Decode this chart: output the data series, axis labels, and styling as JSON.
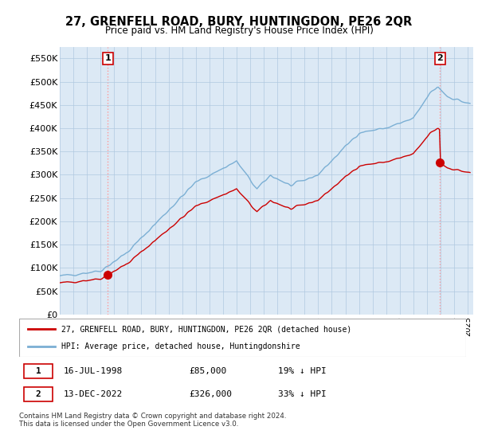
{
  "title": "27, GRENFELL ROAD, BURY, HUNTINGDON, PE26 2QR",
  "subtitle": "Price paid vs. HM Land Registry's House Price Index (HPI)",
  "ylim": [
    0,
    575000
  ],
  "yticks": [
    0,
    50000,
    100000,
    150000,
    200000,
    250000,
    300000,
    350000,
    400000,
    450000,
    500000,
    550000
  ],
  "ytick_labels": [
    "£0",
    "£50K",
    "£100K",
    "£150K",
    "£200K",
    "£250K",
    "£300K",
    "£350K",
    "£400K",
    "£450K",
    "£500K",
    "£550K"
  ],
  "sale1_x": 1998.54,
  "sale2_x": 2022.95,
  "sale1_price": 85000,
  "sale2_price": 326000,
  "legend_label_red": "27, GRENFELL ROAD, BURY, HUNTINGDON, PE26 2QR (detached house)",
  "legend_label_blue": "HPI: Average price, detached house, Huntingdonshire",
  "footnote": "Contains HM Land Registry data © Crown copyright and database right 2024.\nThis data is licensed under the Open Government Licence v3.0.",
  "table_row1": [
    "1",
    "16-JUL-1998",
    "£85,000",
    "19% ↓ HPI"
  ],
  "table_row2": [
    "2",
    "13-DEC-2022",
    "£326,000",
    "33% ↓ HPI"
  ],
  "hpi_color": "#7bafd4",
  "sale_color": "#cc0000",
  "bg_color": "#dce9f5",
  "grid_color": "#b0c8e0"
}
